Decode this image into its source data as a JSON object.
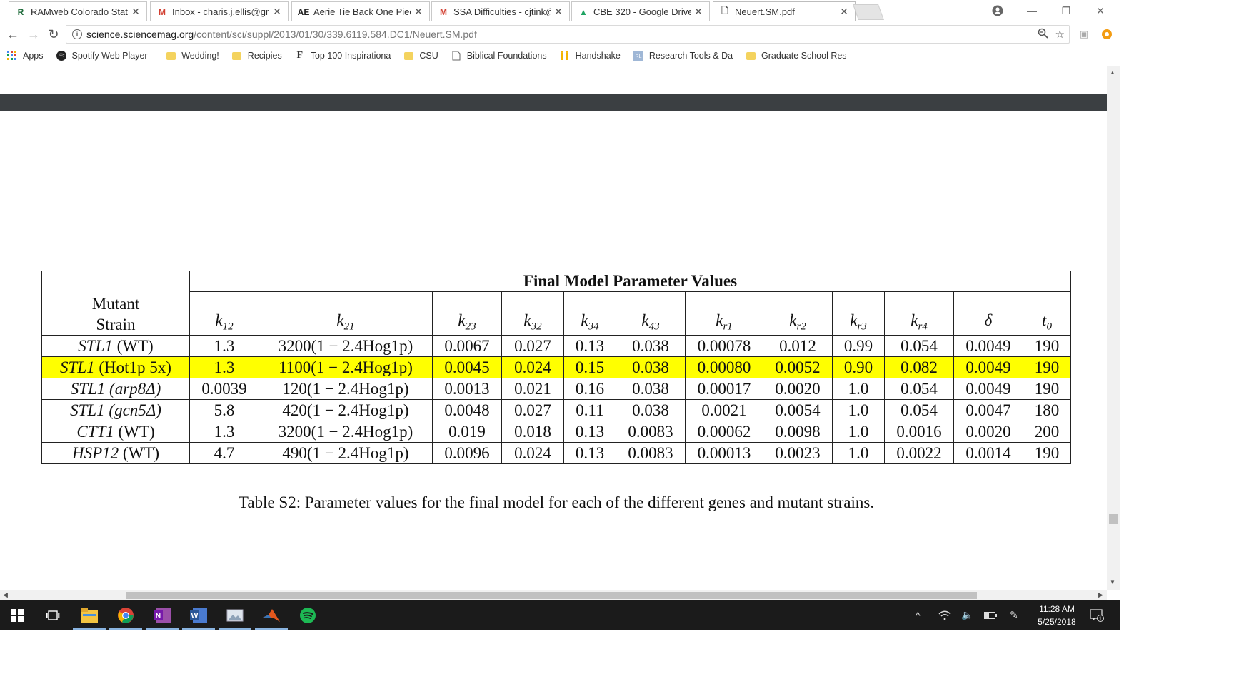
{
  "browser": {
    "tabs": [
      {
        "title": "RAMweb Colorado State",
        "icon": "ramweb-icon",
        "favicon_text": "R",
        "favicon_color": "#1e6b3a",
        "active": false
      },
      {
        "title": "Inbox - charis.j.ellis@gma",
        "icon": "gmail-icon",
        "favicon_text": "M",
        "favicon_color": "#d23f31",
        "active": false
      },
      {
        "title": "Aerie Tie Back One Piece",
        "icon": "aerie-icon",
        "favicon_text": "AE",
        "favicon_color": "#222222",
        "active": false
      },
      {
        "title": "SSA Difficulties - cjtink@",
        "icon": "gmail-icon",
        "favicon_text": "M",
        "favicon_color": "#d23f31",
        "active": false
      },
      {
        "title": "CBE 320 - Google Drive",
        "icon": "google-drive-icon",
        "favicon_text": "▲",
        "favicon_color": "#1fa463",
        "active": false
      },
      {
        "title": "Neuert.SM.pdf",
        "icon": "document-icon",
        "favicon_text": "🗋",
        "favicon_color": "#555555",
        "active": true
      }
    ],
    "url_host": "science.sciencemag.org",
    "url_path": "/content/sci/suppl/2013/01/30/339.6119.584.DC1/Neuert.SM.pdf",
    "bookmarks": [
      {
        "label": "Apps",
        "icon": "apps-grid-icon"
      },
      {
        "label": "Spotify Web Player -",
        "icon": "spotify-icon"
      },
      {
        "label": "Wedding!",
        "icon": "folder-icon"
      },
      {
        "label": "Recipies",
        "icon": "folder-icon"
      },
      {
        "label": "Top 100 Inspirationa",
        "icon": "f-icon"
      },
      {
        "label": "CSU",
        "icon": "folder-icon"
      },
      {
        "label": "Biblical Foundations",
        "icon": "document-icon"
      },
      {
        "label": "Handshake",
        "icon": "handshake-icon"
      },
      {
        "label": "Research Tools & Da",
        "icon": "library-icon"
      },
      {
        "label": "Graduate School Res",
        "icon": "folder-icon"
      }
    ]
  },
  "table": {
    "group_header": "Final Model Parameter Values",
    "strain_header_line1": "Mutant",
    "strain_header_line2": "Strain",
    "columns": [
      {
        "base": "k",
        "sub": "12"
      },
      {
        "base": "k",
        "sub": "21"
      },
      {
        "base": "k",
        "sub": "23"
      },
      {
        "base": "k",
        "sub": "32"
      },
      {
        "base": "k",
        "sub": "34"
      },
      {
        "base": "k",
        "sub": "43"
      },
      {
        "base": "k",
        "sub": "r1"
      },
      {
        "base": "k",
        "sub": "r2"
      },
      {
        "base": "k",
        "sub": "r3"
      },
      {
        "base": "k",
        "sub": "r4"
      },
      {
        "base": "δ",
        "sub": ""
      },
      {
        "base": "t",
        "sub": "0"
      }
    ],
    "rows": [
      {
        "gene": "STL1",
        "variant": "(WT)",
        "variant_italic": false,
        "highlight": false,
        "values": [
          "1.3",
          "3200(1 − 2.4Hog1p)",
          "0.0067",
          "0.027",
          "0.13",
          "0.038",
          "0.00078",
          "0.012",
          "0.99",
          "0.054",
          "0.0049",
          "190"
        ]
      },
      {
        "gene": "STL1",
        "variant": "(Hot1p 5x)",
        "variant_italic": false,
        "highlight": true,
        "values": [
          "1.3",
          "1100(1 − 2.4Hog1p)",
          "0.0045",
          "0.024",
          "0.15",
          "0.038",
          "0.00080",
          "0.0052",
          "0.90",
          "0.082",
          "0.0049",
          "190"
        ]
      },
      {
        "gene": "STL1",
        "variant": "(arp8Δ)",
        "variant_italic": true,
        "highlight": false,
        "values": [
          "0.0039",
          "120(1 − 2.4Hog1p)",
          "0.0013",
          "0.021",
          "0.16",
          "0.038",
          "0.00017",
          "0.0020",
          "1.0",
          "0.054",
          "0.0049",
          "190"
        ]
      },
      {
        "gene": "STL1",
        "variant": "(gcn5Δ)",
        "variant_italic": true,
        "highlight": false,
        "values": [
          "5.8",
          "420(1 − 2.4Hog1p)",
          "0.0048",
          "0.027",
          "0.11",
          "0.038",
          "0.0021",
          "0.0054",
          "1.0",
          "0.054",
          "0.0047",
          "180"
        ]
      },
      {
        "gene": "CTT1",
        "variant": "(WT)",
        "variant_italic": false,
        "highlight": false,
        "values": [
          "1.3",
          "3200(1 − 2.4Hog1p)",
          "0.019",
          "0.018",
          "0.13",
          "0.0083",
          "0.00062",
          "0.0098",
          "1.0",
          "0.0016",
          "0.0020",
          "200"
        ]
      },
      {
        "gene": "HSP12",
        "variant": "(WT)",
        "variant_italic": false,
        "highlight": false,
        "values": [
          "4.7",
          "490(1 − 2.4Hog1p)",
          "0.0096",
          "0.024",
          "0.13",
          "0.0083",
          "0.00013",
          "0.0023",
          "1.0",
          "0.0022",
          "0.0014",
          "190"
        ]
      }
    ],
    "caption": "Table S2: Parameter values for the final model for each of the different genes and mutant strains."
  },
  "taskbar": {
    "time": "11:28 AM",
    "date": "5/25/2018",
    "notifications": "1"
  },
  "colors": {
    "highlight": "#ffff00",
    "dark_band": "#3b3f42",
    "taskbar": "#1b1b1b"
  }
}
